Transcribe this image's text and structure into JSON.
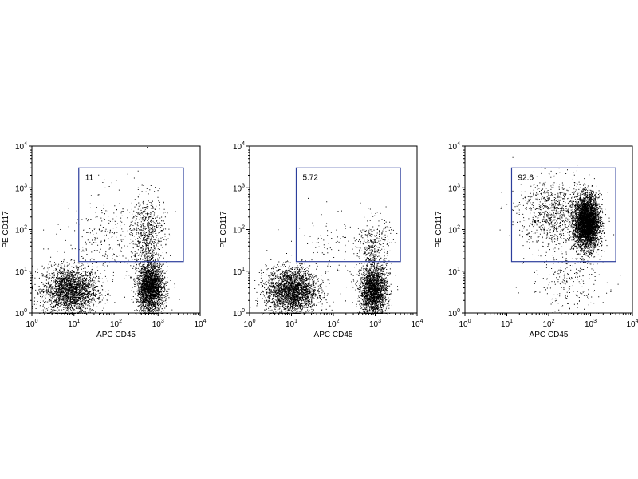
{
  "chart_data": [
    {
      "type": "scatter",
      "panel": "left",
      "xlabel": "APC CD45",
      "ylabel": "PE CD117",
      "x_scale": "log",
      "y_scale": "log",
      "xlim": [
        1,
        10000
      ],
      "ylim": [
        1,
        10000
      ],
      "x_ticks": [
        {
          "base": "10",
          "exp": "0"
        },
        {
          "base": "10",
          "exp": "1"
        },
        {
          "base": "10",
          "exp": "2"
        },
        {
          "base": "10",
          "exp": "3"
        },
        {
          "base": "10",
          "exp": "4"
        }
      ],
      "y_ticks": [
        {
          "base": "10",
          "exp": "0"
        },
        {
          "base": "10",
          "exp": "1"
        },
        {
          "base": "10",
          "exp": "2"
        },
        {
          "base": "10",
          "exp": "3"
        },
        {
          "base": "10",
          "exp": "4"
        }
      ],
      "gate": {
        "x_range": [
          13,
          4000
        ],
        "y_range": [
          17,
          3000
        ],
        "label": "11",
        "color": "#2c3e9c"
      },
      "populations": [
        {
          "cx": 8,
          "cy": 3.5,
          "sx": 0.32,
          "sy": 0.28,
          "n": 2400
        },
        {
          "cx": 650,
          "cy": 4,
          "sx": 0.16,
          "sy": 0.3,
          "n": 2600
        },
        {
          "cx": 550,
          "cy": 80,
          "sx": 0.2,
          "sy": 0.45,
          "n": 700
        },
        {
          "cx": 60,
          "cy": 60,
          "sx": 0.5,
          "sy": 0.6,
          "n": 300
        }
      ]
    },
    {
      "type": "scatter",
      "panel": "middle",
      "xlabel": "APC CD45",
      "ylabel": "PE CD117",
      "x_scale": "log",
      "y_scale": "log",
      "xlim": [
        1,
        10000
      ],
      "ylim": [
        1,
        10000
      ],
      "x_ticks": [
        {
          "base": "10",
          "exp": "0"
        },
        {
          "base": "10",
          "exp": "1"
        },
        {
          "base": "10",
          "exp": "2"
        },
        {
          "base": "10",
          "exp": "3"
        },
        {
          "base": "10",
          "exp": "4"
        }
      ],
      "y_ticks": [
        {
          "base": "10",
          "exp": "0"
        },
        {
          "base": "10",
          "exp": "1"
        },
        {
          "base": "10",
          "exp": "2"
        },
        {
          "base": "10",
          "exp": "3"
        },
        {
          "base": "10",
          "exp": "4"
        }
      ],
      "gate": {
        "x_range": [
          13,
          4000
        ],
        "y_range": [
          17,
          3000
        ],
        "label": "5.72",
        "color": "#2c3e9c"
      },
      "populations": [
        {
          "cx": 10,
          "cy": 3.5,
          "sx": 0.3,
          "sy": 0.27,
          "n": 2600
        },
        {
          "cx": 900,
          "cy": 3.5,
          "sx": 0.16,
          "sy": 0.3,
          "n": 2200
        },
        {
          "cx": 900,
          "cy": 40,
          "sx": 0.2,
          "sy": 0.35,
          "n": 350
        },
        {
          "cx": 80,
          "cy": 30,
          "sx": 0.5,
          "sy": 0.5,
          "n": 120
        }
      ]
    },
    {
      "type": "scatter",
      "panel": "right",
      "xlabel": "APC CD45",
      "ylabel": "PE CD117",
      "x_scale": "log",
      "y_scale": "log",
      "xlim": [
        1,
        10000
      ],
      "ylim": [
        1,
        10000
      ],
      "x_ticks": [
        {
          "base": "10",
          "exp": "0"
        },
        {
          "base": "10",
          "exp": "1"
        },
        {
          "base": "10",
          "exp": "2"
        },
        {
          "base": "10",
          "exp": "3"
        },
        {
          "base": "10",
          "exp": "4"
        }
      ],
      "y_ticks": [
        {
          "base": "10",
          "exp": "0"
        },
        {
          "base": "10",
          "exp": "1"
        },
        {
          "base": "10",
          "exp": "2"
        },
        {
          "base": "10",
          "exp": "3"
        },
        {
          "base": "10",
          "exp": "4"
        }
      ],
      "gate": {
        "x_range": [
          13,
          4000
        ],
        "y_range": [
          17,
          3000
        ],
        "label": "92.6",
        "color": "#2c3e9c"
      },
      "populations": [
        {
          "cx": 800,
          "cy": 150,
          "sx": 0.15,
          "sy": 0.32,
          "n": 4200
        },
        {
          "cx": 120,
          "cy": 250,
          "sx": 0.4,
          "sy": 0.42,
          "n": 900
        },
        {
          "cx": 300,
          "cy": 6,
          "sx": 0.45,
          "sy": 0.4,
          "n": 250
        }
      ]
    }
  ]
}
